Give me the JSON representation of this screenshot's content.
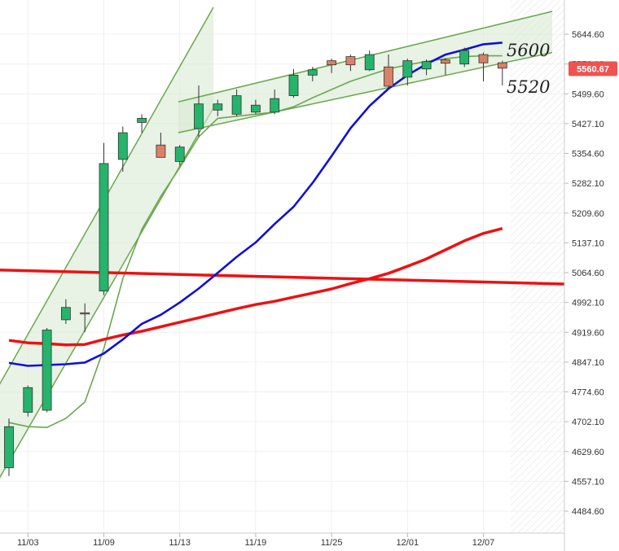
{
  "chart_data": {
    "type": "candlestick",
    "title": "",
    "xlabel": "",
    "ylabel": "",
    "ylim": [
      4440,
      5700
    ],
    "grid": true,
    "y_ticks": [
      "5644.60",
      "5572.10",
      "5499.60",
      "5427.10",
      "5354.60",
      "5282.10",
      "5209.60",
      "5137.10",
      "5064.60",
      "4992.10",
      "4919.60",
      "4847.10",
      "4774.60",
      "4702.10",
      "4629.60",
      "4557.10",
      "4484.60"
    ],
    "x_ticks": [
      {
        "label": "11/03",
        "index": 1
      },
      {
        "label": "11/09",
        "index": 5
      },
      {
        "label": "11/13",
        "index": 9
      },
      {
        "label": "11/19",
        "index": 13
      },
      {
        "label": "11/25",
        "index": 17
      },
      {
        "label": "12/01",
        "index": 21
      },
      {
        "label": "12/07",
        "index": 25
      }
    ],
    "last_price": "5560.67",
    "annotations": [
      "5600",
      "5520"
    ],
    "colors": {
      "up": "#26b36b",
      "down": "#d98068",
      "ma_blue": "#1010d8",
      "ma_red": "#ee1111",
      "channel": "#6aa84f",
      "channel_fill": "#d9ead3",
      "badge": "#ef5350"
    },
    "candles": [
      {
        "o": 4590,
        "h": 4710,
        "l": 4570,
        "c": 4690
      },
      {
        "o": 4725,
        "h": 4790,
        "l": 4715,
        "c": 4785
      },
      {
        "o": 4730,
        "h": 4930,
        "l": 4725,
        "c": 4925
      },
      {
        "o": 4950,
        "h": 5000,
        "l": 4940,
        "c": 4980
      },
      {
        "o": 4967,
        "h": 4990,
        "l": 4920,
        "c": 4965
      },
      {
        "o": 5020,
        "h": 5380,
        "l": 5010,
        "c": 5330
      },
      {
        "o": 5340,
        "h": 5420,
        "l": 5310,
        "c": 5405
      },
      {
        "o": 5430,
        "h": 5450,
        "l": 5405,
        "c": 5440
      },
      {
        "o": 5375,
        "h": 5405,
        "l": 5345,
        "c": 5345
      },
      {
        "o": 5335,
        "h": 5375,
        "l": 5325,
        "c": 5370
      },
      {
        "o": 5415,
        "h": 5520,
        "l": 5395,
        "c": 5475
      },
      {
        "o": 5460,
        "h": 5485,
        "l": 5445,
        "c": 5475
      },
      {
        "o": 5450,
        "h": 5510,
        "l": 5445,
        "c": 5495
      },
      {
        "o": 5455,
        "h": 5485,
        "l": 5450,
        "c": 5472
      },
      {
        "o": 5455,
        "h": 5510,
        "l": 5450,
        "c": 5488
      },
      {
        "o": 5495,
        "h": 5560,
        "l": 5490,
        "c": 5545
      },
      {
        "o": 5545,
        "h": 5565,
        "l": 5530,
        "c": 5558
      },
      {
        "o": 5580,
        "h": 5585,
        "l": 5550,
        "c": 5570
      },
      {
        "o": 5590,
        "h": 5595,
        "l": 5555,
        "c": 5570
      },
      {
        "o": 5558,
        "h": 5605,
        "l": 5555,
        "c": 5595
      },
      {
        "o": 5565,
        "h": 5595,
        "l": 5515,
        "c": 5518
      },
      {
        "o": 5540,
        "h": 5585,
        "l": 5520,
        "c": 5580
      },
      {
        "o": 5560,
        "h": 5583,
        "l": 5545,
        "c": 5578
      },
      {
        "o": 5582,
        "h": 5586,
        "l": 5545,
        "c": 5574
      },
      {
        "o": 5572,
        "h": 5612,
        "l": 5565,
        "c": 5605
      },
      {
        "o": 5595,
        "h": 5600,
        "l": 5530,
        "c": 5575
      },
      {
        "o": 5575,
        "h": 5580,
        "l": 5520,
        "c": 5562
      }
    ],
    "series": [
      {
        "values": [
          4845,
          4838,
          4840,
          4842,
          4846,
          4868,
          4902,
          4940,
          4962,
          4992,
          5026,
          5064,
          5103,
          5138,
          5183,
          5225,
          5283,
          5348,
          5416,
          5470,
          5512,
          5545,
          5572,
          5595,
          5607,
          5620,
          5624
        ]
      },
      {
        "values": [
          4900,
          4894,
          4892,
          4889,
          4890,
          4902,
          4913,
          4922,
          4933,
          4944,
          4955,
          4966,
          4977,
          4987,
          4995,
          5005,
          5015,
          5025,
          5038,
          5050,
          5063,
          5080,
          5098,
          5120,
          5142,
          5160,
          5172
        ]
      }
    ],
    "ma_long": {
      "start": 5071,
      "end": 5037
    },
    "channel_steep": {
      "lower": [
        4533,
        5465
      ],
      "upper": [
        4760,
        5710
      ]
    },
    "channel_upper": {
      "lower": [
        5405,
        5600
      ],
      "upper": [
        5480,
        5700
      ]
    },
    "envelope_inner": [
      4700,
      4690,
      4688,
      4710,
      4750,
      4880,
      5050,
      5170,
      5250,
      5320,
      5395,
      5440,
      5445,
      5450,
      5455,
      5468,
      5490,
      5510,
      5530,
      5545,
      5560,
      5570,
      5578,
      5585,
      5590,
      5592,
      5592
    ]
  }
}
